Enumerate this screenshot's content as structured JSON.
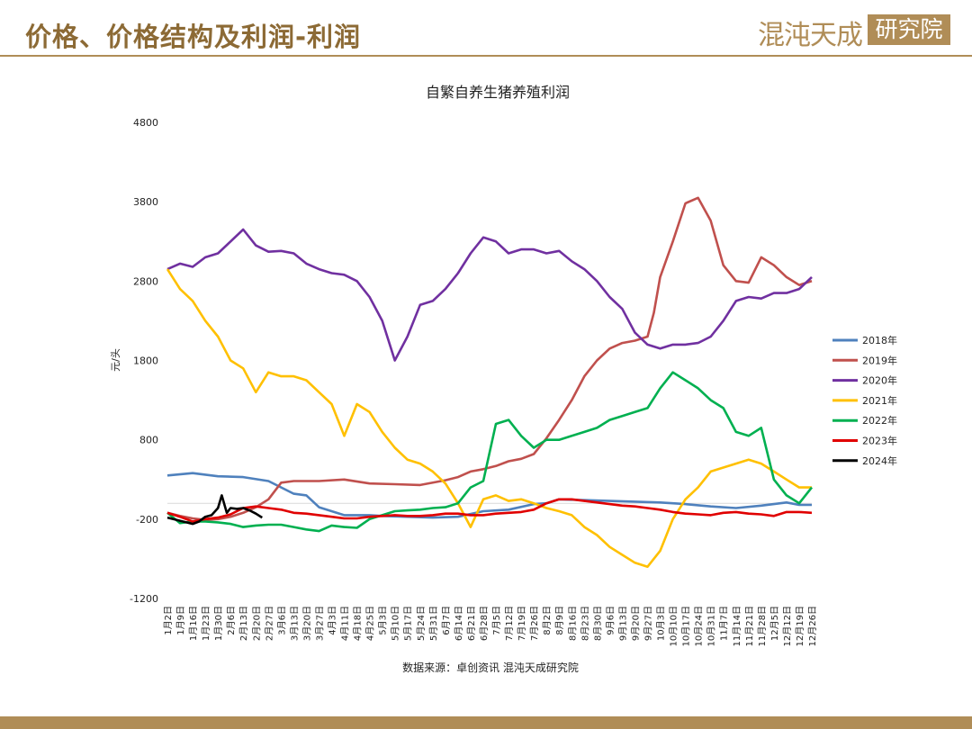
{
  "header": {
    "title": "价格、价格结构及利润-利润",
    "logo_text_left": "混沌天成",
    "logo_text_box": "研究院"
  },
  "chart_data": {
    "type": "line",
    "title": "自繁自养生猪养殖利润",
    "ylabel": "元/头",
    "ylim": [
      -1200,
      4800
    ],
    "yticks": [
      -1200,
      -200,
      800,
      1800,
      2800,
      3800,
      4800
    ],
    "xticks": [
      "1月2日",
      "1月9日",
      "1月16日",
      "1月23日",
      "1月30日",
      "2月6日",
      "2月13日",
      "2月20日",
      "2月27日",
      "3月6日",
      "3月13日",
      "3月20日",
      "3月27日",
      "4月3日",
      "4月11日",
      "4月18日",
      "4月25日",
      "5月3日",
      "5月10日",
      "5月17日",
      "5月24日",
      "5月31日",
      "6月7日",
      "6月14日",
      "6月21日",
      "6月28日",
      "7月5日",
      "7月12日",
      "7月19日",
      "7月26日",
      "8月2日",
      "8月9日",
      "8月16日",
      "8月23日",
      "8月30日",
      "9月6日",
      "9月13日",
      "9月20日",
      "9月27日",
      "10月3日",
      "10月10日",
      "10月17日",
      "10月24日",
      "10月31日",
      "11月7日",
      "11月14日",
      "11月21日",
      "11月28日",
      "12月5日",
      "12月12日",
      "12月19日",
      "12月26日"
    ],
    "legend_position": "right",
    "source": "数据来源：卓创资讯 混沌天成研究院",
    "series": [
      {
        "name": "2018年",
        "color": "#4f81bd",
        "x": [
          0,
          2,
          4,
          6,
          8,
          10,
          11,
          12,
          14,
          16,
          17,
          19,
          21,
          23,
          25,
          27,
          29,
          30,
          31,
          33,
          35,
          37,
          39,
          41,
          43,
          45,
          47,
          49,
          50,
          51
        ],
        "y": [
          350,
          380,
          340,
          330,
          280,
          120,
          100,
          -50,
          -150,
          -150,
          -160,
          -170,
          -180,
          -170,
          -100,
          -80,
          -10,
          0,
          50,
          40,
          30,
          20,
          10,
          -10,
          -40,
          -60,
          -30,
          10,
          -20,
          -20
        ]
      },
      {
        "name": "2019年",
        "color": "#c0504d",
        "x": [
          0,
          1,
          2,
          3,
          4,
          5,
          6,
          7,
          8,
          9,
          10,
          12,
          14,
          16,
          18,
          20,
          22,
          23,
          24,
          25,
          26,
          27,
          28,
          29,
          30,
          31,
          32,
          33,
          34,
          35,
          36,
          37,
          38,
          38.5,
          39,
          40,
          41,
          42,
          43,
          44,
          45,
          46,
          47,
          48,
          49,
          50,
          51
        ],
        "y": [
          -120,
          -160,
          -190,
          -210,
          -200,
          -170,
          -120,
          -50,
          50,
          260,
          280,
          280,
          300,
          250,
          240,
          230,
          290,
          330,
          400,
          430,
          470,
          530,
          560,
          620,
          820,
          1050,
          1300,
          1600,
          1800,
          1950,
          2020,
          2050,
          2100,
          2400,
          2850,
          3300,
          3780,
          3850,
          3560,
          3000,
          2800,
          2780,
          3100,
          3000,
          2850,
          2750,
          2800
        ]
      },
      {
        "name": "2020年",
        "color": "#7030a0",
        "x": [
          0,
          1,
          2,
          3,
          4,
          5,
          6,
          7,
          8,
          9,
          10,
          11,
          12,
          13,
          14,
          15,
          16,
          17,
          18,
          19,
          20,
          21,
          22,
          23,
          24,
          25,
          26,
          27,
          28,
          29,
          30,
          31,
          32,
          33,
          34,
          35,
          36,
          37,
          38,
          39,
          40,
          41,
          42,
          43,
          44,
          45,
          46,
          47,
          48,
          49,
          50,
          51
        ],
        "y": [
          2950,
          3020,
          2980,
          3100,
          3150,
          3300,
          3450,
          3250,
          3170,
          3180,
          3150,
          3020,
          2950,
          2900,
          2880,
          2800,
          2600,
          2300,
          1800,
          2100,
          2500,
          2550,
          2700,
          2900,
          3150,
          3350,
          3300,
          3150,
          3200,
          3200,
          3150,
          3180,
          3050,
          2950,
          2800,
          2600,
          2450,
          2150,
          2000,
          1950,
          2000,
          2000,
          2020,
          2100,
          2300,
          2550,
          2600,
          2580,
          2650,
          2650,
          2700,
          2850
        ]
      },
      {
        "name": "2021年",
        "color": "#ffc000",
        "x": [
          0,
          1,
          2,
          3,
          4,
          5,
          6,
          7,
          8,
          9,
          10,
          11,
          12,
          13,
          14,
          15,
          16,
          17,
          18,
          19,
          20,
          21,
          22,
          23,
          24,
          25,
          26,
          27,
          28,
          29,
          30,
          31,
          32,
          33,
          34,
          35,
          36,
          37,
          38,
          39,
          40,
          41,
          42,
          43,
          44,
          45,
          46,
          47,
          48,
          49,
          50,
          51
        ],
        "y": [
          2950,
          2700,
          2550,
          2300,
          2100,
          1800,
          1700,
          1400,
          1650,
          1600,
          1600,
          1550,
          1400,
          1250,
          850,
          1250,
          1150,
          900,
          700,
          550,
          500,
          400,
          250,
          0,
          -300,
          50,
          100,
          30,
          50,
          0,
          -60,
          -100,
          -150,
          -300,
          -400,
          -550,
          -650,
          -750,
          -800,
          -600,
          -200,
          50,
          200,
          400,
          450,
          500,
          550,
          500,
          400,
          300,
          200,
          200
        ]
      },
      {
        "name": "2022年",
        "color": "#00b050",
        "x": [
          0,
          1,
          2,
          3,
          4,
          5,
          6,
          7,
          8,
          9,
          10,
          11,
          12,
          13,
          14,
          15,
          16,
          17,
          18,
          19,
          20,
          21,
          22,
          23,
          24,
          25,
          26,
          27,
          28,
          29,
          30,
          31,
          32,
          33,
          34,
          35,
          36,
          37,
          38,
          39,
          40,
          41,
          42,
          43,
          44,
          45,
          46,
          47,
          48,
          49,
          50,
          51
        ],
        "y": [
          -120,
          -250,
          -230,
          -230,
          -240,
          -260,
          -300,
          -280,
          -270,
          -270,
          -300,
          -330,
          -350,
          -280,
          -300,
          -310,
          -200,
          -150,
          -100,
          -90,
          -80,
          -60,
          -50,
          0,
          200,
          280,
          1000,
          1050,
          850,
          700,
          800,
          800,
          850,
          900,
          950,
          1050,
          1100,
          1150,
          1200,
          1450,
          1650,
          1550,
          1450,
          1300,
          1200,
          900,
          850,
          950,
          300,
          100,
          0,
          200
        ]
      },
      {
        "name": "2023年",
        "color": "#e00000",
        "x": [
          0,
          1,
          2,
          3,
          4,
          5,
          6,
          7,
          8,
          9,
          10,
          11,
          12,
          13,
          14,
          15,
          16,
          17,
          18,
          19,
          20,
          21,
          22,
          23,
          24,
          25,
          26,
          27,
          28,
          29,
          30,
          31,
          32,
          33,
          34,
          35,
          36,
          37,
          38,
          39,
          40,
          41,
          42,
          43,
          44,
          45,
          46,
          47,
          48,
          49,
          50,
          51
        ],
        "y": [
          -120,
          -170,
          -230,
          -200,
          -180,
          -140,
          -60,
          -40,
          -60,
          -80,
          -120,
          -130,
          -150,
          -170,
          -190,
          -190,
          -170,
          -160,
          -150,
          -160,
          -160,
          -150,
          -130,
          -130,
          -150,
          -150,
          -130,
          -120,
          -110,
          -80,
          0,
          50,
          50,
          30,
          10,
          -10,
          -30,
          -40,
          -60,
          -80,
          -110,
          -130,
          -140,
          -150,
          -120,
          -110,
          -130,
          -140,
          -160,
          -110,
          -110,
          -120
        ]
      },
      {
        "name": "2024年",
        "color": "#000000",
        "x": [
          0,
          1,
          2,
          2.5,
          3,
          3.5,
          4,
          4.3,
          4.7,
          5,
          5.5,
          6,
          6.5,
          7,
          7.5
        ],
        "y": [
          -180,
          -220,
          -260,
          -230,
          -170,
          -150,
          -60,
          100,
          -120,
          -60,
          -70,
          -60,
          -90,
          -130,
          -180
        ]
      }
    ]
  }
}
